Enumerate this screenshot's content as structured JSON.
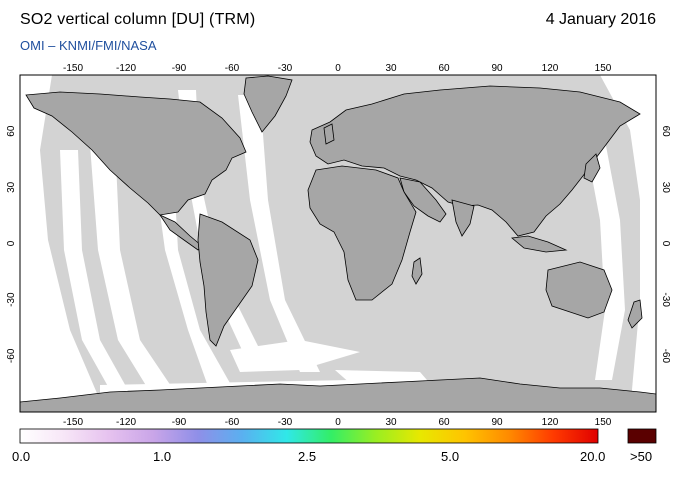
{
  "header": {
    "title": "SO2 vertical column [DU] (TRM)",
    "date": "4 January 2016",
    "subtitle": "OMI  –  KNMI/FMI/NASA"
  },
  "map": {
    "projection": "equirectangular",
    "lon_ticks": [
      "-150",
      "-120",
      "-90",
      "-60",
      "-30",
      "0",
      "30",
      "60",
      "90",
      "120",
      "150"
    ],
    "lat_ticks": [
      "60",
      "30",
      "0",
      "-30",
      "-60"
    ],
    "colors": {
      "ocean": "#d3d3d3",
      "land": "#a6a6a6",
      "no_data": "#ffffff",
      "outline": "#000000"
    }
  },
  "colorbar": {
    "labels": [
      "0.0",
      "1.0",
      "2.5",
      "5.0",
      "20.0"
    ],
    "overflow_label": ">50",
    "stops": [
      "#ffffff",
      "#f7e6f7",
      "#e6c2ef",
      "#c9a5e8",
      "#8f8fe8",
      "#5ab0f0",
      "#30e8e8",
      "#33ee66",
      "#99ee22",
      "#e8e800",
      "#ffc400",
      "#ff8a00",
      "#ff3a00",
      "#e00000"
    ],
    "overflow_color": "#5a0000"
  }
}
